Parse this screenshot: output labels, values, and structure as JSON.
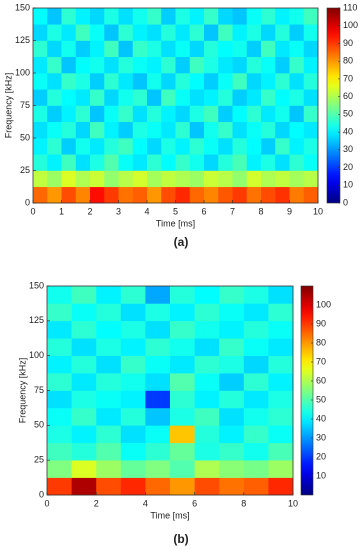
{
  "chart_data": [
    {
      "type": "heatmap",
      "xlabel": "Time [ms]",
      "ylabel": "Frequency [kHz]",
      "caption": "(a)",
      "colormap": "jet",
      "xlim": [
        0,
        10
      ],
      "ylim": [
        0,
        150
      ],
      "xticks": [
        0,
        1,
        2,
        3,
        4,
        5,
        6,
        7,
        8,
        9,
        10
      ],
      "yticks": [
        0,
        25,
        50,
        75,
        100,
        125,
        150
      ],
      "clim": [
        0,
        110
      ],
      "cticks": [
        0,
        10,
        20,
        30,
        40,
        50,
        60,
        70,
        80,
        90,
        100,
        110
      ],
      "xbins": [
        0,
        0.5,
        1,
        1.5,
        2,
        2.5,
        3,
        3.5,
        4,
        4.5,
        5,
        5.5,
        6,
        6.5,
        7,
        7.5,
        8,
        8.5,
        9,
        9.5,
        10
      ],
      "ybins": [
        0,
        12.5,
        25,
        37.5,
        50,
        62.5,
        75,
        87.5,
        100,
        112.5,
        125,
        137.5,
        150
      ],
      "values": [
        [
          85,
          80,
          88,
          82,
          95,
          90,
          84,
          86,
          80,
          88,
          92,
          85,
          82,
          87,
          90,
          84,
          88,
          91,
          83,
          86
        ],
        [
          62,
          58,
          65,
          60,
          63,
          57,
          61,
          64,
          59,
          62,
          60,
          58,
          63,
          61,
          57,
          64,
          60,
          62,
          59,
          61
        ],
        [
          45,
          40,
          48,
          38,
          44,
          50,
          42,
          39,
          46,
          41,
          47,
          43,
          37,
          45,
          49,
          40,
          44,
          38,
          46,
          42
        ],
        [
          40,
          46,
          36,
          43,
          39,
          45,
          48,
          41,
          37,
          44,
          40,
          46,
          42,
          38,
          45,
          41,
          36,
          47,
          40,
          44
        ],
        [
          38,
          42,
          45,
          37,
          48,
          40,
          36,
          44,
          42,
          39,
          46,
          35,
          43,
          47,
          38,
          42,
          45,
          37,
          41,
          39
        ],
        [
          44,
          36,
          40,
          46,
          35,
          42,
          47,
          38,
          45,
          40,
          37,
          44,
          48,
          36,
          41,
          46,
          39,
          43,
          35,
          47
        ],
        [
          36,
          45,
          41,
          39,
          47,
          37,
          43,
          46,
          35,
          48,
          42,
          38,
          40,
          45,
          36,
          39,
          47,
          41,
          44,
          38
        ],
        [
          42,
          38,
          47,
          44,
          36,
          46,
          39,
          35,
          43,
          37,
          45,
          41,
          36,
          42,
          48,
          37,
          40,
          46,
          38,
          45
        ],
        [
          39,
          47,
          35,
          41,
          43,
          38,
          45,
          42,
          40,
          46,
          36,
          48,
          44,
          39,
          37,
          45,
          42,
          36,
          47,
          40
        ],
        [
          46,
          37,
          43,
          36,
          40,
          48,
          35,
          47,
          44,
          38,
          42,
          37,
          45,
          41,
          43,
          36,
          48,
          39,
          42,
          37
        ],
        [
          37,
          44,
          39,
          48,
          42,
          35,
          46,
          40,
          38,
          45,
          39,
          46,
          35,
          48,
          40,
          44,
          37,
          45,
          36,
          43
        ],
        [
          41,
          35,
          46,
          40,
          37,
          44,
          38,
          43,
          47,
          36,
          44,
          40,
          47,
          37,
          35,
          42,
          46,
          40,
          43,
          48
        ]
      ]
    },
    {
      "type": "heatmap",
      "xlabel": "Time [ms]",
      "ylabel": "Frequency [kHz]",
      "caption": "(b)",
      "colormap": "jet",
      "xlim": [
        0,
        10
      ],
      "ylim": [
        0,
        150
      ],
      "xticks": [
        0,
        2,
        4,
        6,
        8,
        10
      ],
      "yticks": [
        0,
        25,
        50,
        75,
        100,
        125,
        150
      ],
      "clim": [
        0,
        110
      ],
      "cticks": [
        10,
        20,
        30,
        40,
        50,
        60,
        70,
        80,
        90,
        100
      ],
      "xbins": [
        0,
        1,
        2,
        3,
        4,
        5,
        6,
        7,
        8,
        9,
        10
      ],
      "ybins": [
        0,
        12.5,
        25,
        37.5,
        50,
        62.5,
        75,
        87.5,
        100,
        112.5,
        125,
        137.5,
        150
      ],
      "values": [
        [
          90,
          105,
          88,
          92,
          85,
          80,
          88,
          84,
          86,
          92
        ],
        [
          55,
          65,
          58,
          52,
          55,
          50,
          60,
          56,
          54,
          58
        ],
        [
          48,
          45,
          50,
          42,
          46,
          52,
          44,
          47,
          43,
          49
        ],
        [
          44,
          40,
          46,
          38,
          42,
          75,
          45,
          40,
          47,
          42
        ],
        [
          42,
          47,
          39,
          45,
          35,
          44,
          48,
          38,
          43,
          46
        ],
        [
          38,
          44,
          42,
          40,
          20,
          46,
          40,
          45,
          39,
          44
        ],
        [
          46,
          39,
          45,
          43,
          38,
          50,
          42,
          36,
          46,
          40
        ],
        [
          40,
          45,
          38,
          47,
          42,
          39,
          46,
          44,
          37,
          45
        ],
        [
          45,
          38,
          44,
          40,
          46,
          43,
          38,
          47,
          42,
          39
        ],
        [
          39,
          46,
          41,
          44,
          38,
          47,
          43,
          40,
          45,
          42
        ],
        [
          47,
          42,
          45,
          38,
          44,
          40,
          46,
          42,
          39,
          46
        ],
        [
          43,
          48,
          40,
          46,
          32,
          45,
          41,
          47,
          44,
          38
        ]
      ]
    }
  ]
}
